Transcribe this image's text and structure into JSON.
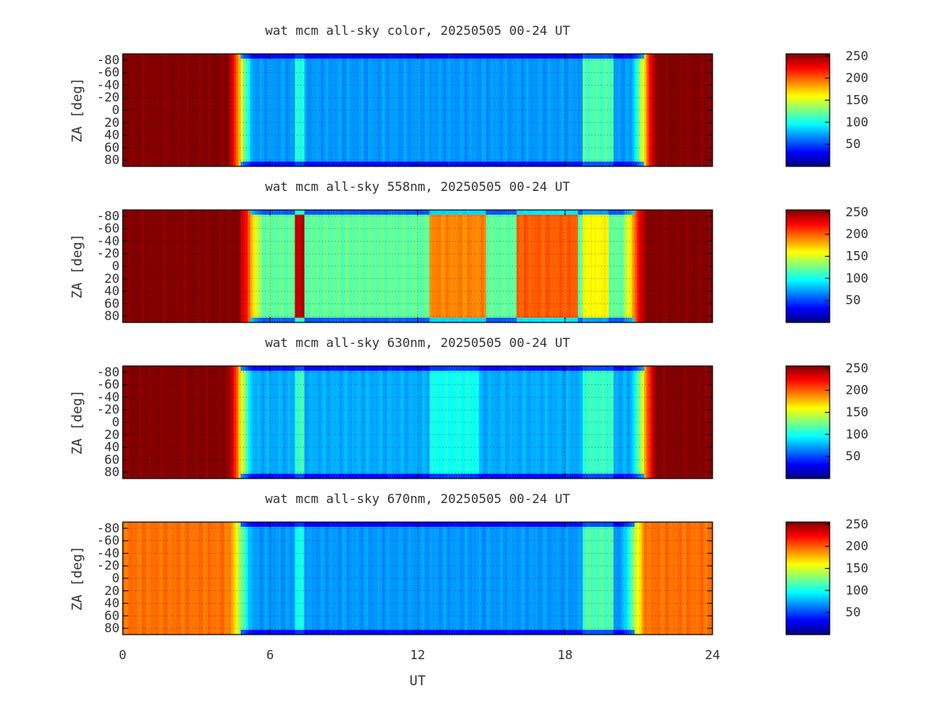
{
  "chart_data": [
    {
      "type": "heatmap",
      "title": "wat mcm all-sky color, 20250505 00-24 UT",
      "ylabel": "ZA [deg]",
      "xlabel": "",
      "xlim": [
        0,
        24
      ],
      "ylim": [
        -90,
        90
      ],
      "y_ticks": [
        "-80",
        "-60",
        "-40",
        "-20",
        "0",
        "20",
        "40",
        "60",
        "80"
      ],
      "colorbar": {
        "range": [
          0,
          255
        ],
        "ticks": [
          "250",
          "200",
          "150",
          "100",
          "50"
        ],
        "colormap": "jet"
      },
      "grid": true,
      "daylight_saturated_ut": {
        "morning_end": 4.8,
        "evening_start": 21.2
      },
      "night_level": 70,
      "features": [
        {
          "ut_start": 7.0,
          "ut_end": 7.4,
          "level": 105
        },
        {
          "ut_start": 18.7,
          "ut_end": 20.0,
          "level": 115
        }
      ]
    },
    {
      "type": "heatmap",
      "title": "wat mcm all-sky 558nm, 20250505 00-24 UT",
      "ylabel": "ZA [deg]",
      "xlim": [
        0,
        24
      ],
      "ylim": [
        -90,
        90
      ],
      "y_ticks": [
        "-80",
        "-60",
        "-40",
        "-20",
        "0",
        "20",
        "40",
        "60",
        "80"
      ],
      "colorbar": {
        "range": [
          0,
          255
        ],
        "ticks": [
          "250",
          "200",
          "150",
          "100",
          "50"
        ],
        "colormap": "jet"
      },
      "grid": true,
      "daylight_saturated_ut": {
        "morning_end": 5.2,
        "evening_start": 20.8
      },
      "night_level": 120,
      "features": [
        {
          "ut_start": 7.0,
          "ut_end": 7.4,
          "level": 240
        },
        {
          "ut_start": 12.5,
          "ut_end": 14.8,
          "level": 190
        },
        {
          "ut_start": 16.0,
          "ut_end": 18.5,
          "level": 200
        },
        {
          "ut_start": 18.7,
          "ut_end": 19.8,
          "level": 160
        }
      ]
    },
    {
      "type": "heatmap",
      "title": "wat mcm all-sky 630nm, 20250505 00-24 UT",
      "ylabel": "ZA [deg]",
      "xlim": [
        0,
        24
      ],
      "ylim": [
        -90,
        90
      ],
      "y_ticks": [
        "-80",
        "-60",
        "-40",
        "-20",
        "0",
        "20",
        "40",
        "60",
        "80"
      ],
      "colorbar": {
        "range": [
          0,
          255
        ],
        "ticks": [
          "250",
          "200",
          "150",
          "100",
          "50"
        ],
        "colormap": "jet"
      },
      "grid": true,
      "daylight_saturated_ut": {
        "morning_end": 4.8,
        "evening_start": 21.2
      },
      "night_level": 75,
      "features": [
        {
          "ut_start": 7.0,
          "ut_end": 7.4,
          "level": 110
        },
        {
          "ut_start": 12.5,
          "ut_end": 14.5,
          "level": 100
        },
        {
          "ut_start": 18.7,
          "ut_end": 20.0,
          "level": 110
        }
      ]
    },
    {
      "type": "heatmap",
      "title": "wat mcm all-sky 670nm, 20250505 00-24 UT",
      "ylabel": "ZA [deg]",
      "xlabel": "UT",
      "xlim": [
        0,
        24
      ],
      "ylim": [
        -90,
        90
      ],
      "x_ticks": [
        "0",
        "6",
        "12",
        "18",
        "24"
      ],
      "y_ticks": [
        "-80",
        "-60",
        "-40",
        "-20",
        "0",
        "20",
        "40",
        "60",
        "80"
      ],
      "colorbar": {
        "range": [
          0,
          255
        ],
        "ticks": [
          "250",
          "200",
          "150",
          "100",
          "50"
        ],
        "colormap": "jet"
      },
      "grid": true,
      "daylight_level": 195,
      "daylight_saturated_ut": {
        "morning_end": 4.8,
        "evening_start": 20.8
      },
      "night_level": 70,
      "features": [
        {
          "ut_start": 7.0,
          "ut_end": 7.4,
          "level": 100
        },
        {
          "ut_start": 18.7,
          "ut_end": 20.0,
          "level": 115
        }
      ]
    }
  ]
}
